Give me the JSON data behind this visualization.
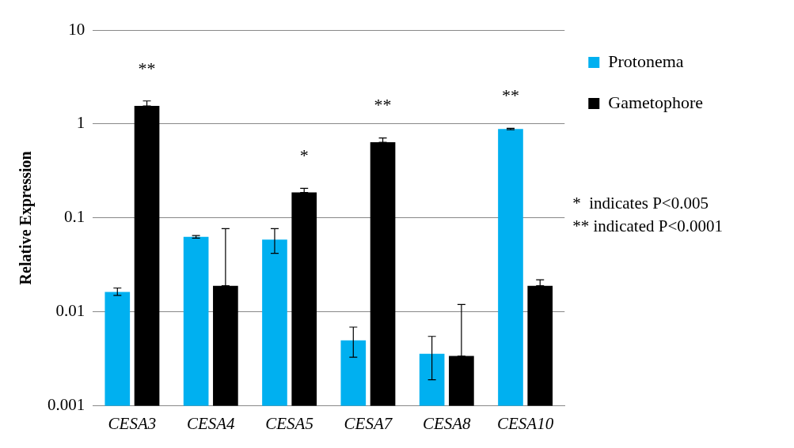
{
  "chart_data": {
    "type": "bar",
    "ylabel": "Relative Expression",
    "categories": [
      "CESA3",
      "CESA4",
      "CESA5",
      "CESA7",
      "CESA8",
      "CESA10"
    ],
    "series": [
      {
        "name": "Protonema",
        "color": "#00b0f0",
        "values": [
          0.0163,
          0.063,
          0.059,
          0.005,
          0.0036,
          0.885
        ],
        "errors": [
          [
            0.015,
            0.018
          ],
          [
            0.061,
            0.065
          ],
          [
            0.042,
            0.077
          ],
          [
            0.0033,
            0.0069
          ],
          [
            0.0019,
            0.0055
          ],
          [
            0.87,
            0.9
          ]
        ],
        "value_labels": [
          null,
          null,
          null,
          null,
          null,
          "**"
        ]
      },
      {
        "name": "Gametophore",
        "color": "#000000",
        "values": [
          1.56,
          0.019,
          0.187,
          0.64,
          0.0034,
          0.019
        ],
        "errors": [
          [
            1.56,
            1.76
          ],
          [
            0.019,
            0.077
          ],
          [
            0.187,
            0.207
          ],
          [
            0.64,
            0.71
          ],
          [
            0.0034,
            0.012
          ],
          [
            0.019,
            0.022
          ]
        ],
        "value_labels": [
          "**",
          null,
          "*",
          "**",
          null,
          null
        ]
      }
    ],
    "log": "y",
    "ylim": [
      0.001,
      10
    ],
    "yticks": [
      0.001,
      0.01,
      0.1,
      1,
      10
    ],
    "grid": "y",
    "legend": "right",
    "annotations": [
      "*  indicates P<0.005",
      "** indicated P<0.0001"
    ]
  }
}
